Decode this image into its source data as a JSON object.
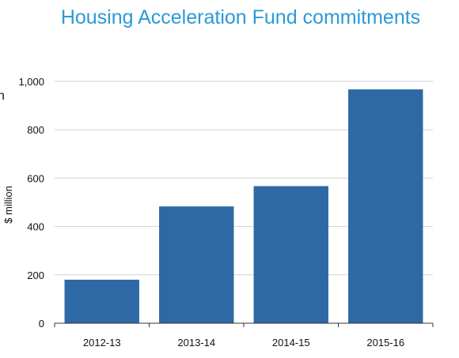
{
  "chart_data": {
    "type": "bar",
    "title": "Housing Acceleration Fund commitments",
    "ylabel": "$ million",
    "xlabel": "",
    "categories": [
      "2012-13",
      "2013-14",
      "2014-15",
      "2015-16"
    ],
    "values": [
      180,
      483,
      567,
      967
    ],
    "ylim": [
      0,
      1000
    ],
    "yticks": [
      0,
      200,
      400,
      600,
      800,
      1000
    ],
    "ytick_labels": [
      "0",
      "200",
      "400",
      "600",
      "800",
      "1,000"
    ],
    "grid": true,
    "bar_color": "#2e69a5",
    "title_color": "#2b9ad6",
    "edge_mark": "n"
  }
}
